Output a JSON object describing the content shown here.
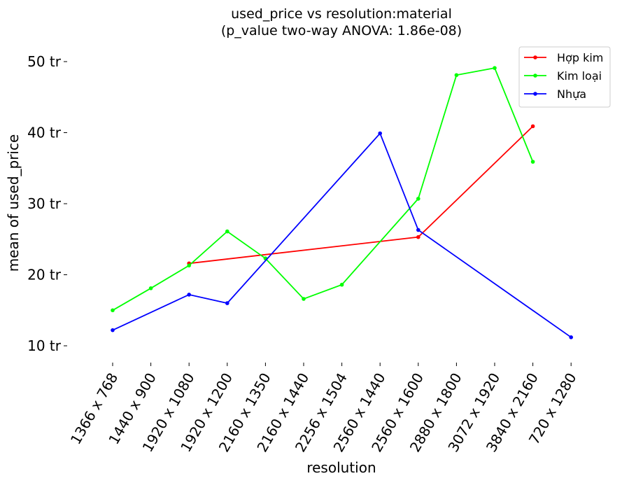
{
  "chart_data": {
    "type": "line",
    "title": "used_price vs resolution:material",
    "subtitle": "(p_value two-way ANOVA: 1.86e-08)",
    "xlabel": "resolution",
    "ylabel": "mean of used_price",
    "categories": [
      "1366 x 768",
      "1440 x 900",
      "1920 x 1080",
      "1920 x 1200",
      "2160 x 1350",
      "2160 x 1440",
      "2256 x 1504",
      "2560 x 1440",
      "2560 x 1600",
      "2880 x 1800",
      "3072 x 1920",
      "3840 x 2160",
      "720 x 1280"
    ],
    "y_ticks": [
      10,
      20,
      30,
      40,
      50
    ],
    "y_tick_labels": [
      "10 tr",
      "20 tr",
      "30 tr",
      "40 tr",
      "50 tr"
    ],
    "ylim": [
      7.5,
      52.5
    ],
    "y_unit": "tr",
    "grid": false,
    "legend_position": "top-right",
    "series": [
      {
        "name": "Hợp kim",
        "color": "#ff0000",
        "points": [
          [
            2,
            21.6
          ],
          [
            8,
            25.3
          ],
          [
            11,
            40.9
          ]
        ]
      },
      {
        "name": "Kim loại",
        "color": "#00ff00",
        "points": [
          [
            0,
            15.0
          ],
          [
            1,
            18.1
          ],
          [
            2,
            21.3
          ],
          [
            3,
            26.1
          ],
          [
            4,
            22.3
          ],
          [
            5,
            16.6
          ],
          [
            6,
            18.6
          ],
          [
            8,
            30.7
          ],
          [
            9,
            48.1
          ],
          [
            10,
            49.1
          ],
          [
            11,
            35.9
          ]
        ]
      },
      {
        "name": "Nhựa",
        "color": "#0000ff",
        "points": [
          [
            0,
            12.2
          ],
          [
            2,
            17.2
          ],
          [
            3,
            16.0
          ],
          [
            7,
            39.9
          ],
          [
            8,
            26.3
          ],
          [
            12,
            11.2
          ]
        ]
      }
    ]
  }
}
